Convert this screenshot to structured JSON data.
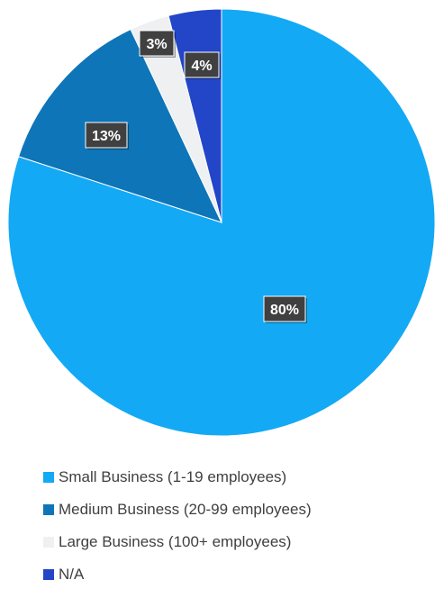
{
  "chart_data": {
    "type": "pie",
    "title": "",
    "start_angle_deg": 0,
    "direction": "clockwise",
    "legend_position": "bottom",
    "slices": [
      {
        "label": "Small Business (1-19 employees)",
        "value": 80,
        "display": "80%",
        "color": "#13A9F5"
      },
      {
        "label": "Medium Business (20-99 employees)",
        "value": 13,
        "display": "13%",
        "color": "#0E75B8"
      },
      {
        "label": "Large Business (100+ employees)",
        "value": 3,
        "display": "3%",
        "color": "#EEF0F2"
      },
      {
        "label": "N/A",
        "value": 4,
        "display": "4%",
        "color": "#2346C8"
      }
    ]
  }
}
